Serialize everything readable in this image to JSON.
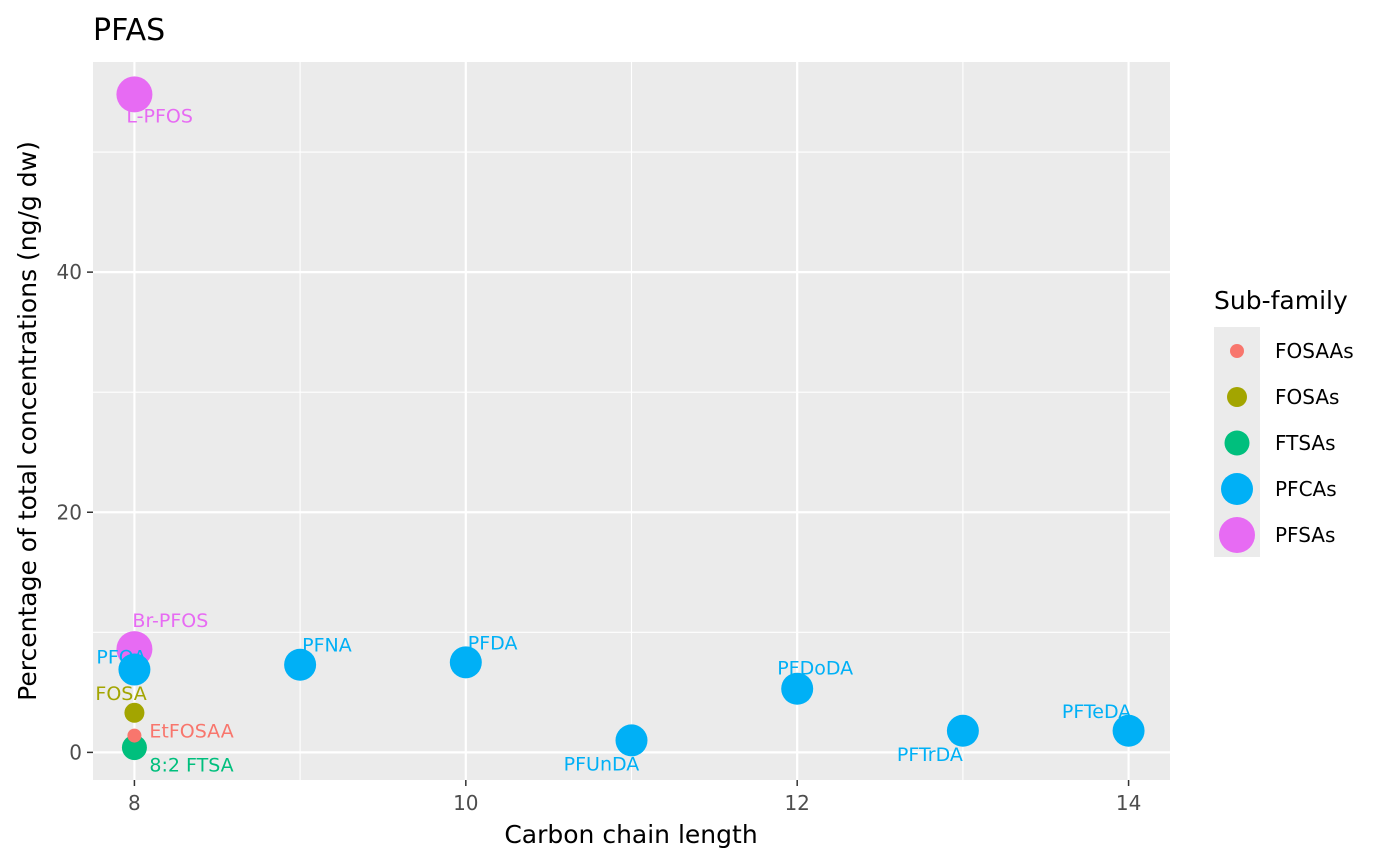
{
  "chart_data": {
    "type": "scatter",
    "title": "PFAS",
    "xlabel": "Carbon chain length",
    "ylabel": "Percentage of total concentrations (ng/g dw)",
    "xlim": [
      7.75,
      14.25
    ],
    "ylim": [
      -2.3,
      57.5
    ],
    "xticks": [
      8,
      10,
      12,
      14
    ],
    "yticks": [
      0,
      20,
      40
    ],
    "xtick_labels": [
      "8",
      "10",
      "12",
      "14"
    ],
    "ytick_labels": [
      "0",
      "20",
      "40"
    ],
    "grid": true,
    "legend": {
      "title": "Sub-family",
      "placement": "right",
      "entries": [
        {
          "name": "FOSAAs",
          "color": "#F8766D"
        },
        {
          "name": "FOSAs",
          "color": "#A3A500"
        },
        {
          "name": "FTSAs",
          "color": "#00BF7D"
        },
        {
          "name": "PFCAs",
          "color": "#00B0F6"
        },
        {
          "name": "PFSAs",
          "color": "#E76BF3"
        }
      ]
    },
    "points": [
      {
        "label": "L-PFOS",
        "x": 8,
        "y": 54.8,
        "group": "PFSAs"
      },
      {
        "label": "Br-PFOS",
        "x": 8,
        "y": 8.6,
        "group": "PFSAs"
      },
      {
        "label": "PFOA",
        "x": 8,
        "y": 6.9,
        "group": "PFCAs"
      },
      {
        "label": "FOSA",
        "x": 8,
        "y": 3.3,
        "group": "FOSAs"
      },
      {
        "label": "EtFOSAA",
        "x": 8,
        "y": 1.4,
        "group": "FOSAAs"
      },
      {
        "label": "8:2 FTSA",
        "x": 8,
        "y": 0.4,
        "group": "FTSAs"
      },
      {
        "label": "PFNA",
        "x": 9,
        "y": 7.3,
        "group": "PFCAs"
      },
      {
        "label": "PFDA",
        "x": 10,
        "y": 7.5,
        "group": "PFCAs"
      },
      {
        "label": "PFUnDA",
        "x": 11,
        "y": 1.0,
        "group": "PFCAs"
      },
      {
        "label": "PFDoDA",
        "x": 12,
        "y": 5.3,
        "group": "PFCAs"
      },
      {
        "label": "PFTrDA",
        "x": 13,
        "y": 1.8,
        "group": "PFCAs"
      },
      {
        "label": "PFTeDA",
        "x": 14,
        "y": 1.8,
        "group": "PFCAs"
      }
    ]
  }
}
